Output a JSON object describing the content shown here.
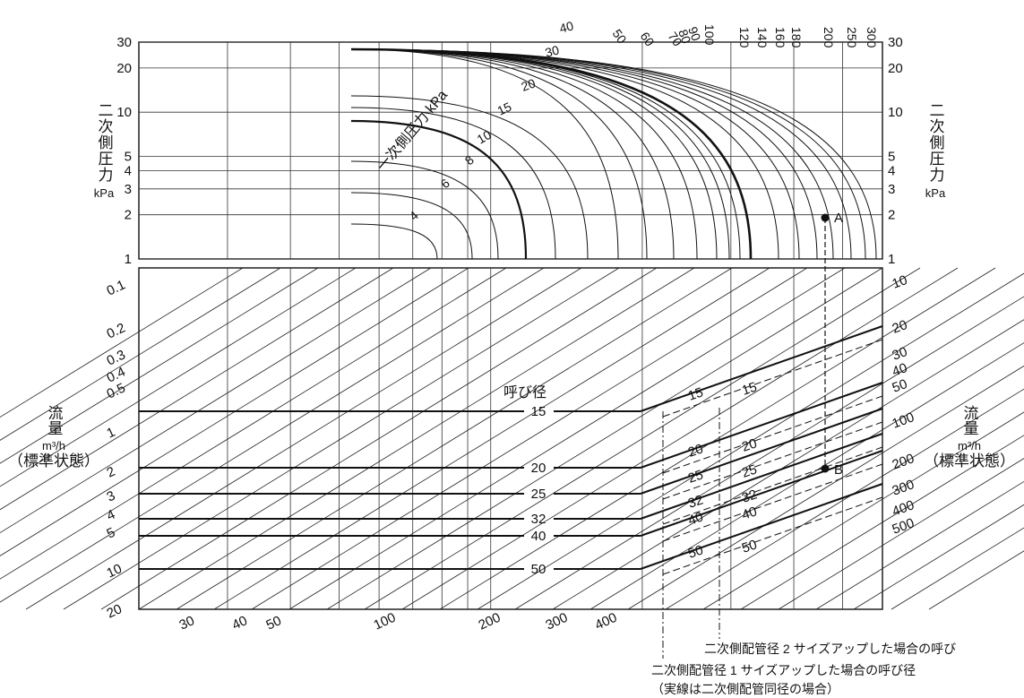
{
  "labels": {
    "left_pressure": "二次側圧力",
    "right_pressure": "二次側圧力",
    "pressure_unit": "kPa",
    "left_flow": "流量",
    "right_flow": "流量",
    "flow_unit": "m³/h",
    "flow_condition": "（標準状態）",
    "primary_pressure": "一次側圧力 kPa",
    "nominal_size": "呼び径"
  },
  "notes": {
    "two_size_up": "二次側配管径 2 サイズアップした場合の呼び",
    "one_size_up": "二次側配管径 1 サイズアップした場合の呼び径",
    "same_size": "（実線は二次側配管同径の場合）"
  },
  "chart_data": {
    "type": "nomogram",
    "top_panel": {
      "y_label": "二次側圧力 kPa",
      "y_scale": "log",
      "y_ticks": [
        "1",
        "2",
        "3",
        "4",
        "5",
        "10",
        "20",
        "30"
      ],
      "y_range": [
        1,
        30
      ],
      "curve_label": "一次側圧力 kPa",
      "primary_pressure_curves": [
        "4",
        "6",
        "8",
        "10",
        "15",
        "20",
        "30",
        "40",
        "50",
        "60",
        "70",
        "80",
        "90",
        "100",
        "120",
        "140",
        "160",
        "180",
        "200",
        "250",
        "300"
      ],
      "point_A": {
        "label": "A",
        "secondary_pressure": 2,
        "primary_pressure": 200
      }
    },
    "bottom_panel": {
      "left_flow_ticks": [
        "0.1",
        "0.2",
        "0.3",
        "0.4",
        "0.5",
        "1",
        "2",
        "3",
        "4",
        "5",
        "10",
        "20"
      ],
      "bottom_flow_ticks": [
        "30",
        "40",
        "50",
        "100",
        "200",
        "300",
        "400"
      ],
      "right_flow_ticks": [
        "10",
        "20",
        "30",
        "40",
        "50",
        "100",
        "200",
        "300",
        "400",
        "500"
      ],
      "y_label": "流量 m³/h（標準状態）",
      "nominal_size_label": "呼び径",
      "nominal_sizes": [
        "15",
        "20",
        "25",
        "32",
        "40",
        "50"
      ],
      "point_B": {
        "label": "B"
      }
    }
  }
}
